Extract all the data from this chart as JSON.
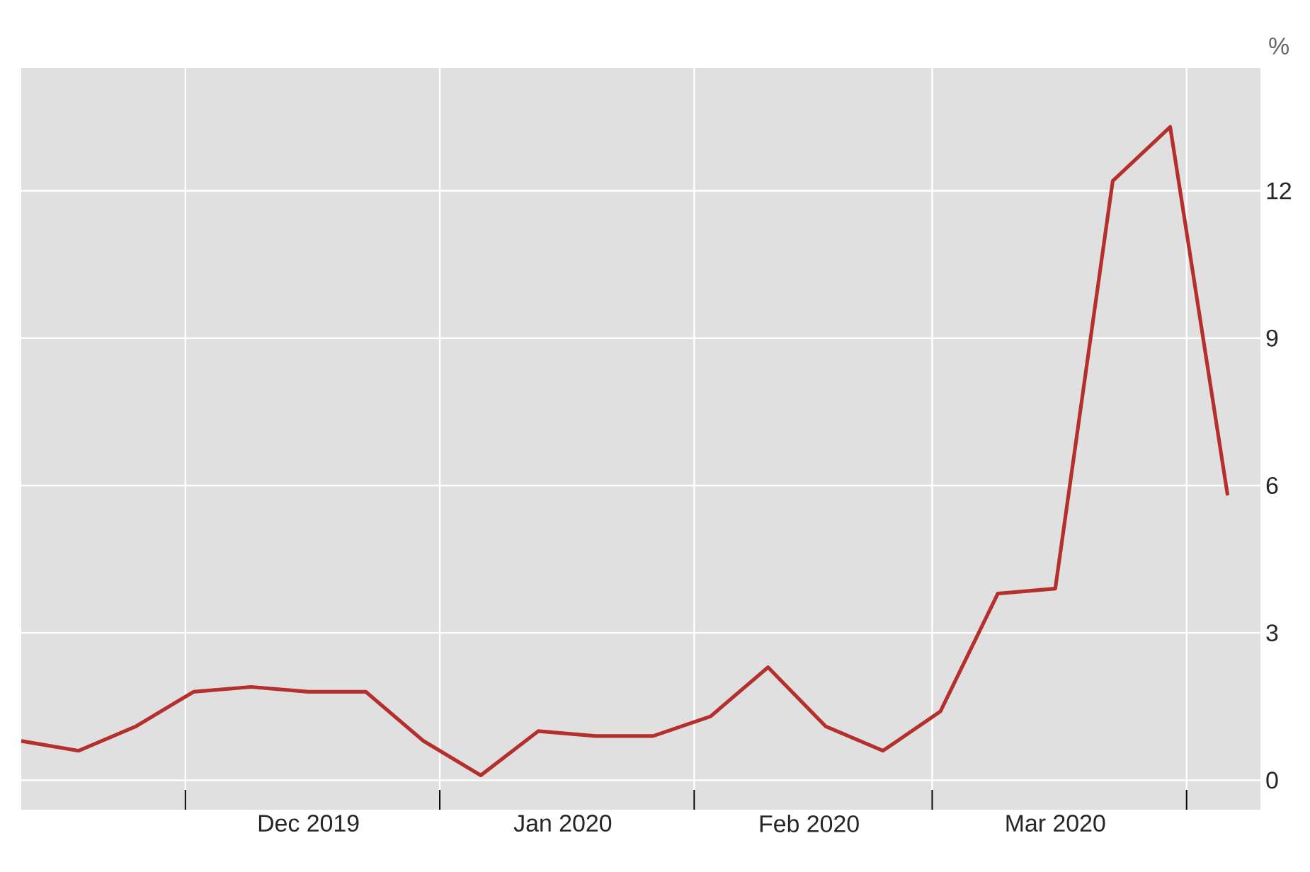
{
  "chart_data": {
    "type": "line",
    "ylabel": "%",
    "x": [
      "2019-11-11",
      "2019-11-18",
      "2019-11-25",
      "2019-12-02",
      "2019-12-09",
      "2019-12-16",
      "2019-12-23",
      "2019-12-30",
      "2020-01-06",
      "2020-01-13",
      "2020-01-20",
      "2020-01-27",
      "2020-02-03",
      "2020-02-10",
      "2020-02-17",
      "2020-02-24",
      "2020-03-02",
      "2020-03-09",
      "2020-03-16",
      "2020-03-23",
      "2020-03-30",
      "2020-04-06"
    ],
    "series": [
      {
        "color": "#b5302c",
        "values": [
          0.8,
          0.6,
          1.1,
          1.8,
          1.9,
          1.8,
          1.8,
          0.8,
          0.1,
          1.0,
          0.9,
          0.9,
          1.3,
          2.3,
          1.1,
          0.6,
          1.4,
          3.8,
          3.9,
          12.2,
          13.3,
          5.8
        ]
      }
    ],
    "xlim": [
      "2019-11-11",
      "2020-04-10"
    ],
    "xticks": [
      {
        "value": "2019-12-01",
        "label": null
      },
      {
        "value": "2019-12-16",
        "label": "Dec 2019"
      },
      {
        "value": "2020-01-01",
        "label": null
      },
      {
        "value": "2020-01-16",
        "label": "Jan 2020"
      },
      {
        "value": "2020-02-01",
        "label": null
      },
      {
        "value": "2020-02-15",
        "label": "Feb 2020"
      },
      {
        "value": "2020-03-01",
        "label": null
      },
      {
        "value": "2020-03-16",
        "label": "Mar 2020"
      },
      {
        "value": "2020-04-01",
        "label": null
      }
    ],
    "ylim": [
      -0.6,
      14.5
    ],
    "yticks": [
      0,
      3,
      6,
      9,
      12
    ],
    "grid": true,
    "line_style": "solid",
    "marker": "none"
  }
}
